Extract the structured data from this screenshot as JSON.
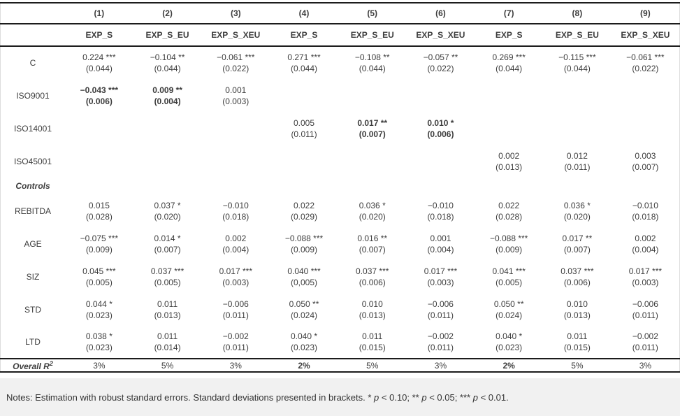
{
  "colors": {
    "rule_color": "#1c1c1c",
    "notes_background": "#f1f1f1",
    "text_color": "#3d3d3d"
  },
  "table": {
    "col_numbers": [
      "(1)",
      "(2)",
      "(3)",
      "(4)",
      "(5)",
      "(6)",
      "(7)",
      "(8)",
      "(9)"
    ],
    "col_models": [
      "EXP_S",
      "EXP_S_EU",
      "EXP_S_XEU",
      "EXP_S",
      "EXP_S_EU",
      "EXP_S_XEU",
      "EXP_S",
      "EXP_S_EU",
      "EXP_S_XEU"
    ],
    "rows": [
      {
        "label": "C",
        "cells": [
          {
            "v": "0.224 ***",
            "se": "(0.044)"
          },
          {
            "v": "−0.104 **",
            "se": "(0.044)"
          },
          {
            "v": "−0.061 ***",
            "se": "(0.022)"
          },
          {
            "v": "0.271 ***",
            "se": "(0.044)"
          },
          {
            "v": "−0.108 **",
            "se": "(0.044)"
          },
          {
            "v": "−0.057 **",
            "se": "(0.022)"
          },
          {
            "v": "0.269 ***",
            "se": "(0.044)"
          },
          {
            "v": "−0.115 ***",
            "se": "(0.044)"
          },
          {
            "v": "−0.061 ***",
            "se": "(0.022)"
          }
        ]
      },
      {
        "label": "ISO9001",
        "cells": [
          {
            "v": "−0.043 ***",
            "se": "(0.006)",
            "b": true
          },
          {
            "v": "0.009 **",
            "se": "(0.004)",
            "b": true
          },
          {
            "v": "0.001",
            "se": "(0.003)"
          },
          null,
          null,
          null,
          null,
          null,
          null
        ]
      },
      {
        "label": "ISO14001",
        "cells": [
          null,
          null,
          null,
          {
            "v": "0.005",
            "se": "(0.011)"
          },
          {
            "v": "0.017 **",
            "se": "(0.007)",
            "b": true
          },
          {
            "v": "0.010 *",
            "se": "(0.006)",
            "b": true
          },
          null,
          null,
          null
        ]
      },
      {
        "label": "ISO45001",
        "cells": [
          null,
          null,
          null,
          null,
          null,
          null,
          {
            "v": "0.002",
            "se": "(0.013)"
          },
          {
            "v": "0.012",
            "se": "(0.011)"
          },
          {
            "v": "0.003",
            "se": "(0.007)"
          }
        ]
      },
      {
        "label": "Controls",
        "section": true,
        "cells": []
      },
      {
        "label": "REBITDA",
        "cells": [
          {
            "v": "0.015",
            "se": "(0.028)"
          },
          {
            "v": "0.037 *",
            "se": "(0.020)"
          },
          {
            "v": "−0.010",
            "se": "(0.018)"
          },
          {
            "v": "0.022",
            "se": "(0.029)"
          },
          {
            "v": "0.036 *",
            "se": "(0.020)"
          },
          {
            "v": "−0.010",
            "se": "(0.018)"
          },
          {
            "v": "0.022",
            "se": "(0.028)"
          },
          {
            "v": "0.036 *",
            "se": "(0.020)"
          },
          {
            "v": "−0.010",
            "se": "(0.018)"
          }
        ]
      },
      {
        "label": "AGE",
        "cells": [
          {
            "v": "−0.075 ***",
            "se": "(0.009)"
          },
          {
            "v": "0.014 *",
            "se": "(0.007)"
          },
          {
            "v": "0.002",
            "se": "(0.004)"
          },
          {
            "v": "−0.088 ***",
            "se": "(0.009)"
          },
          {
            "v": "0.016 **",
            "se": "(0.007)"
          },
          {
            "v": "0.001",
            "se": "(0.004)"
          },
          {
            "v": "−0.088 ***",
            "se": "(0.009)"
          },
          {
            "v": "0.017 **",
            "se": "(0.007)"
          },
          {
            "v": "0.002",
            "se": "(0.004)"
          }
        ]
      },
      {
        "label": "SIZ",
        "cells": [
          {
            "v": "0.045 ***",
            "se": "(0.005)"
          },
          {
            "v": "0.037 ***",
            "se": "(0.005)"
          },
          {
            "v": "0.017 ***",
            "se": "(0.003)"
          },
          {
            "v": "0.040 ***",
            "se": "(0,005)"
          },
          {
            "v": "0.037 ***",
            "se": "(0.006)"
          },
          {
            "v": "0.017 ***",
            "se": "(0.003)"
          },
          {
            "v": "0.041 ***",
            "se": "(0.005)"
          },
          {
            "v": "0.037 ***",
            "se": "(0.006)"
          },
          {
            "v": "0.017 ***",
            "se": "(0.003)"
          }
        ]
      },
      {
        "label": "STD",
        "cells": [
          {
            "v": "0.044 *",
            "se": "(0.023)"
          },
          {
            "v": "0.011",
            "se": "(0.013)"
          },
          {
            "v": "−0.006",
            "se": "(0.011)"
          },
          {
            "v": "0.050 **",
            "se": "(0.024)"
          },
          {
            "v": "0.010",
            "se": "(0.013)"
          },
          {
            "v": "−0.006",
            "se": "(0.011)"
          },
          {
            "v": "0.050 **",
            "se": "(0.024)"
          },
          {
            "v": "0.010",
            "se": "(0.013)"
          },
          {
            "v": "−0.006",
            "se": "(0.011)"
          }
        ]
      },
      {
        "label": "LTD",
        "cells": [
          {
            "v": "0.038 *",
            "se": "(0.023)"
          },
          {
            "v": "0.011",
            "se": "(0.014)"
          },
          {
            "v": "−0.002",
            "se": "(0.011)"
          },
          {
            "v": "0.040 *",
            "se": "(0.023)"
          },
          {
            "v": "0.011",
            "se": "(0.015)"
          },
          {
            "v": "−0.002",
            "se": "(0.011)"
          },
          {
            "v": "0.040 *",
            "se": "(0.023)"
          },
          {
            "v": "0.011",
            "se": "(0.015)"
          },
          {
            "v": "−0.002",
            "se": "(0.011)"
          }
        ]
      }
    ],
    "footer": {
      "label": "Overall R",
      "label_sup": "2",
      "values": [
        "3%",
        "5%",
        "3%",
        "2%",
        "5%",
        "3%",
        "2%",
        "5%",
        "3%"
      ],
      "bold": [
        false,
        false,
        false,
        true,
        false,
        false,
        true,
        false,
        false
      ]
    }
  },
  "notes": {
    "segments": [
      {
        "text": "Notes: Estimation with robust standard errors. Standard deviations presented in brackets. * "
      },
      {
        "text": "p",
        "italic": true
      },
      {
        "text": " < 0.10; ** "
      },
      {
        "text": "p",
        "italic": true
      },
      {
        "text": " < 0.05; *** "
      },
      {
        "text": "p",
        "italic": true
      },
      {
        "text": " < 0.01."
      }
    ]
  }
}
